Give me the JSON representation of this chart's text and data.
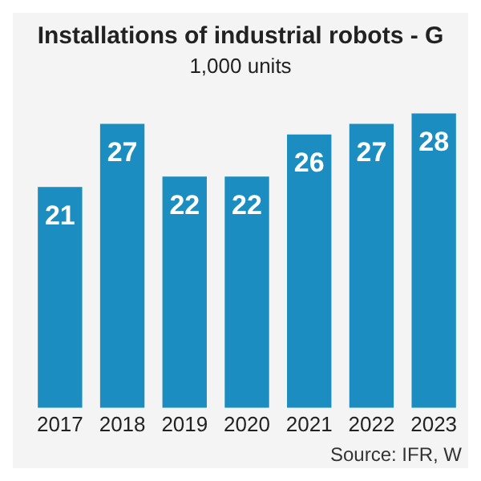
{
  "chart_data": {
    "type": "bar",
    "title": "Installations of industrial robots - G",
    "subtitle": "1,000 units",
    "categories": [
      "2017",
      "2018",
      "2019",
      "2020",
      "2021",
      "2022",
      "2023"
    ],
    "values": [
      21,
      27,
      22,
      22,
      26,
      27,
      28
    ],
    "color": "#1b8dc0",
    "data_labels": true,
    "relative": false,
    "grid": false,
    "legend": false,
    "annotations": [
      "Source: IFR, W"
    ]
  }
}
